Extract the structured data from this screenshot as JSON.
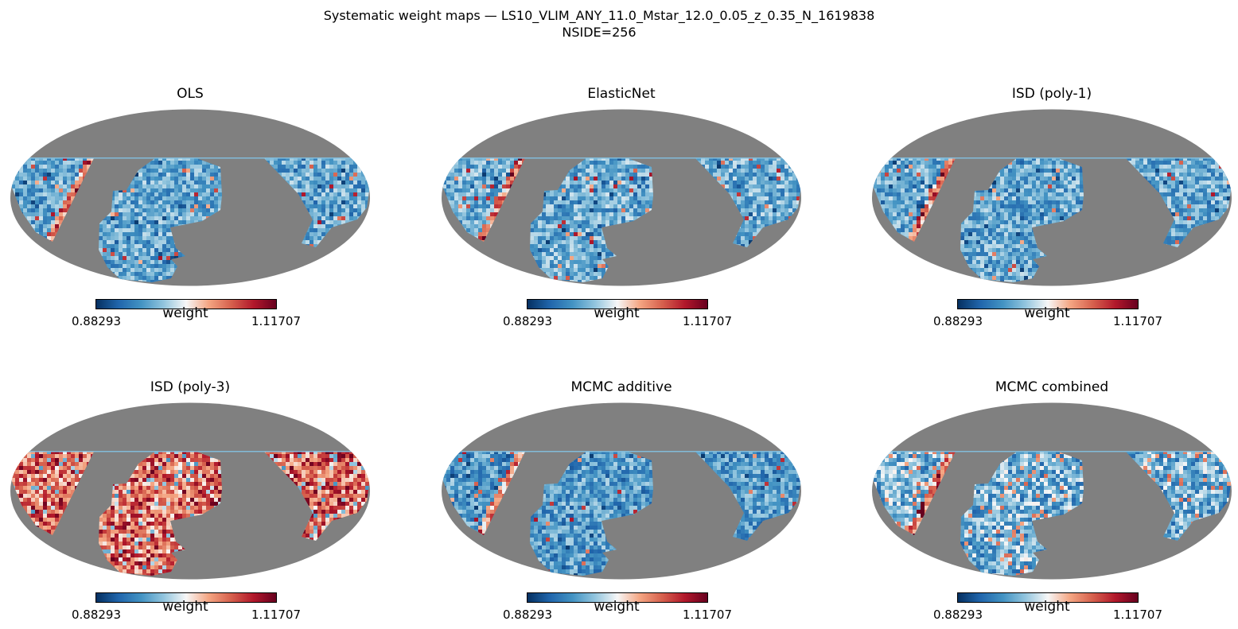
{
  "figure": {
    "suptitle_line1": "Systematic weight maps — LS10_VLIM_ANY_11.0_Mstar_12.0_0.05_z_0.35_N_1619838",
    "suptitle_line2": "NSIDE=256"
  },
  "colors": {
    "masked": "#808080",
    "colormap": "RdBu_r",
    "colormap_stops": [
      "#053061",
      "#2166ac",
      "#4393c3",
      "#92c5de",
      "#f7f7f7",
      "#f4a582",
      "#d6604d",
      "#b2182b",
      "#67001f"
    ]
  },
  "chart_data": [
    {
      "type": "heatmap",
      "projection": "mollweide",
      "title": "OLS",
      "colorbar_label": "weight",
      "vmin": "0.88293",
      "vmax": "1.11707",
      "pattern": "mostly-light-blue",
      "mean_level": 0.3
    },
    {
      "type": "heatmap",
      "projection": "mollweide",
      "title": "ElasticNet",
      "colorbar_label": "weight",
      "vmin": "0.88293",
      "vmax": "1.11707",
      "pattern": "mostly-light-blue",
      "mean_level": 0.31
    },
    {
      "type": "heatmap",
      "projection": "mollweide",
      "title": "ISD (poly-1)",
      "colorbar_label": "weight",
      "vmin": "0.88293",
      "vmax": "1.11707",
      "pattern": "mostly-light-blue",
      "mean_level": 0.3
    },
    {
      "type": "heatmap",
      "projection": "mollweide",
      "title": "ISD (poly-3)",
      "colorbar_label": "weight",
      "vmin": "0.88293",
      "vmax": "1.11707",
      "pattern": "mostly-red",
      "mean_level": 0.68
    },
    {
      "type": "heatmap",
      "projection": "mollweide",
      "title": "MCMC additive",
      "colorbar_label": "weight",
      "vmin": "0.88293",
      "vmax": "1.11707",
      "pattern": "mostly-blue",
      "mean_level": 0.27
    },
    {
      "type": "heatmap",
      "projection": "mollweide",
      "title": "MCMC combined",
      "colorbar_label": "weight",
      "vmin": "0.88293",
      "vmax": "1.11707",
      "pattern": "mixed-light-blue",
      "mean_level": 0.36
    }
  ]
}
